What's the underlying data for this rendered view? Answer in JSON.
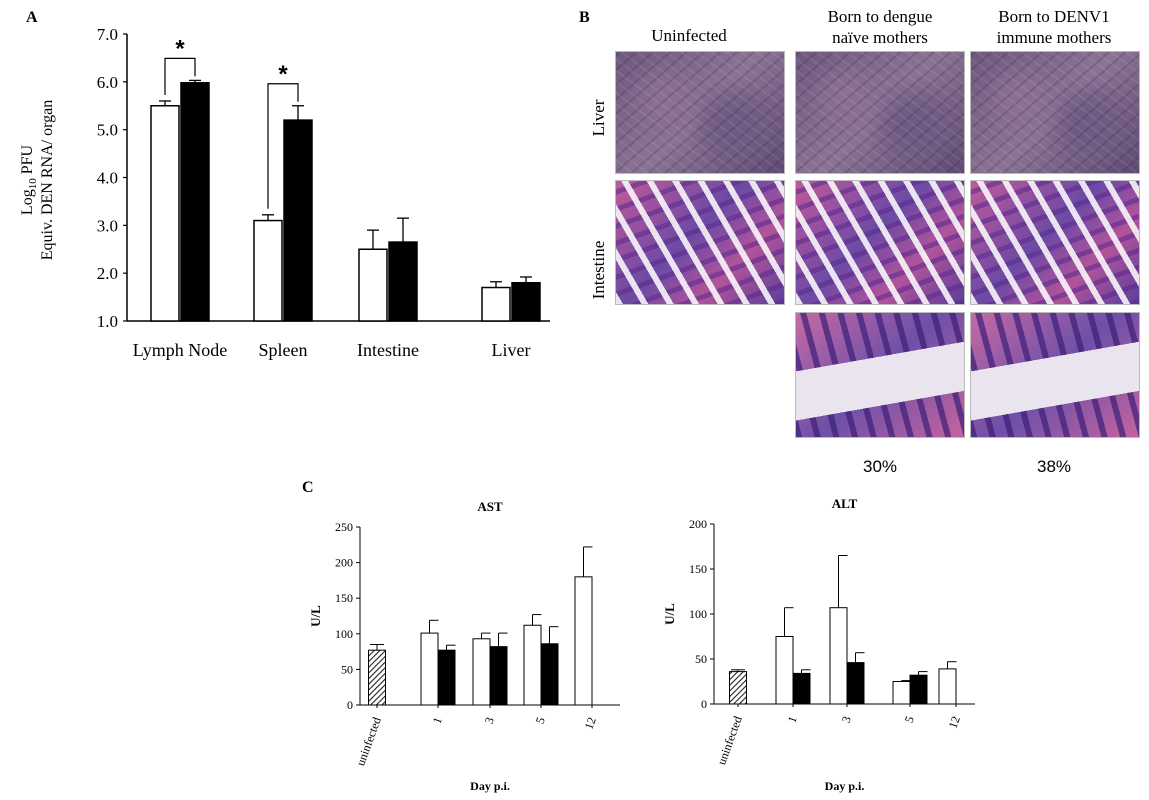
{
  "chart_data": [
    {
      "panel": "A",
      "type": "bar",
      "ylabel_line1": "Log",
      "ylabel_sub": "10",
      "ylabel_line1b": " PFU",
      "ylabel_line2": "Equiv. DEN RNA/ organ",
      "ylim": [
        1.0,
        7.0
      ],
      "yticks": [
        "1.0",
        "2.0",
        "3.0",
        "4.0",
        "5.0",
        "6.0",
        "7.0"
      ],
      "categories": [
        "Lymph Node",
        "Spleen",
        "Intestine",
        "Liver"
      ],
      "series": [
        {
          "color": "#ffffff",
          "values": [
            5.5,
            3.1,
            2.5,
            1.7
          ],
          "errors": [
            0.1,
            0.12,
            0.4,
            0.12
          ]
        },
        {
          "color": "#000000",
          "values": [
            5.98,
            5.2,
            2.65,
            1.8
          ],
          "errors": [
            0.05,
            0.3,
            0.5,
            0.12
          ]
        }
      ],
      "significance": [
        {
          "category": "Lymph Node",
          "label": "*"
        },
        {
          "category": "Spleen",
          "label": "*"
        }
      ]
    },
    {
      "panel": "C",
      "type": "bar",
      "title": "AST",
      "ylabel": "U/L",
      "xlabel": "Day p.i.",
      "ylim": [
        0,
        250
      ],
      "yticks": [
        "0",
        "50",
        "100",
        "150",
        "200",
        "250"
      ],
      "categories": [
        "uninfected",
        "1",
        "3",
        "5",
        "12"
      ],
      "uninfected": {
        "value": 77,
        "error": 8,
        "fill": "hatched"
      },
      "series": [
        {
          "color": "#ffffff",
          "values": [
            null,
            101,
            93,
            112,
            180
          ],
          "errors": [
            null,
            18,
            8,
            15,
            42
          ]
        },
        {
          "color": "#000000",
          "values": [
            null,
            77,
            82,
            86,
            null
          ],
          "errors": [
            null,
            7,
            19,
            24,
            null
          ]
        }
      ]
    },
    {
      "panel": "C",
      "type": "bar",
      "title": "ALT",
      "ylabel": "U/L",
      "xlabel": "Day p.i.",
      "ylim": [
        0,
        200
      ],
      "yticks": [
        "0",
        "50",
        "100",
        "150",
        "200"
      ],
      "categories": [
        "uninfected",
        "1",
        "3",
        "5",
        "12"
      ],
      "uninfected": {
        "value": 36,
        "error": 2,
        "fill": "hatched"
      },
      "series": [
        {
          "color": "#ffffff",
          "values": [
            null,
            75,
            107,
            25,
            39
          ],
          "errors": [
            null,
            32,
            58,
            1,
            8
          ]
        },
        {
          "color": "#000000",
          "values": [
            null,
            34,
            46,
            32,
            null
          ],
          "errors": [
            null,
            4,
            11,
            4,
            null
          ]
        }
      ]
    }
  ],
  "panelB": {
    "label": "B",
    "columns": [
      "Uninfected",
      "Born to dengue",
      "naïve mothers",
      "Born to DENV1",
      "immune mothers"
    ],
    "rows": [
      "Liver",
      "Intestine"
    ],
    "percentages": [
      "30%",
      "38%"
    ]
  },
  "panelA_label": "A",
  "panelC_label": "C"
}
